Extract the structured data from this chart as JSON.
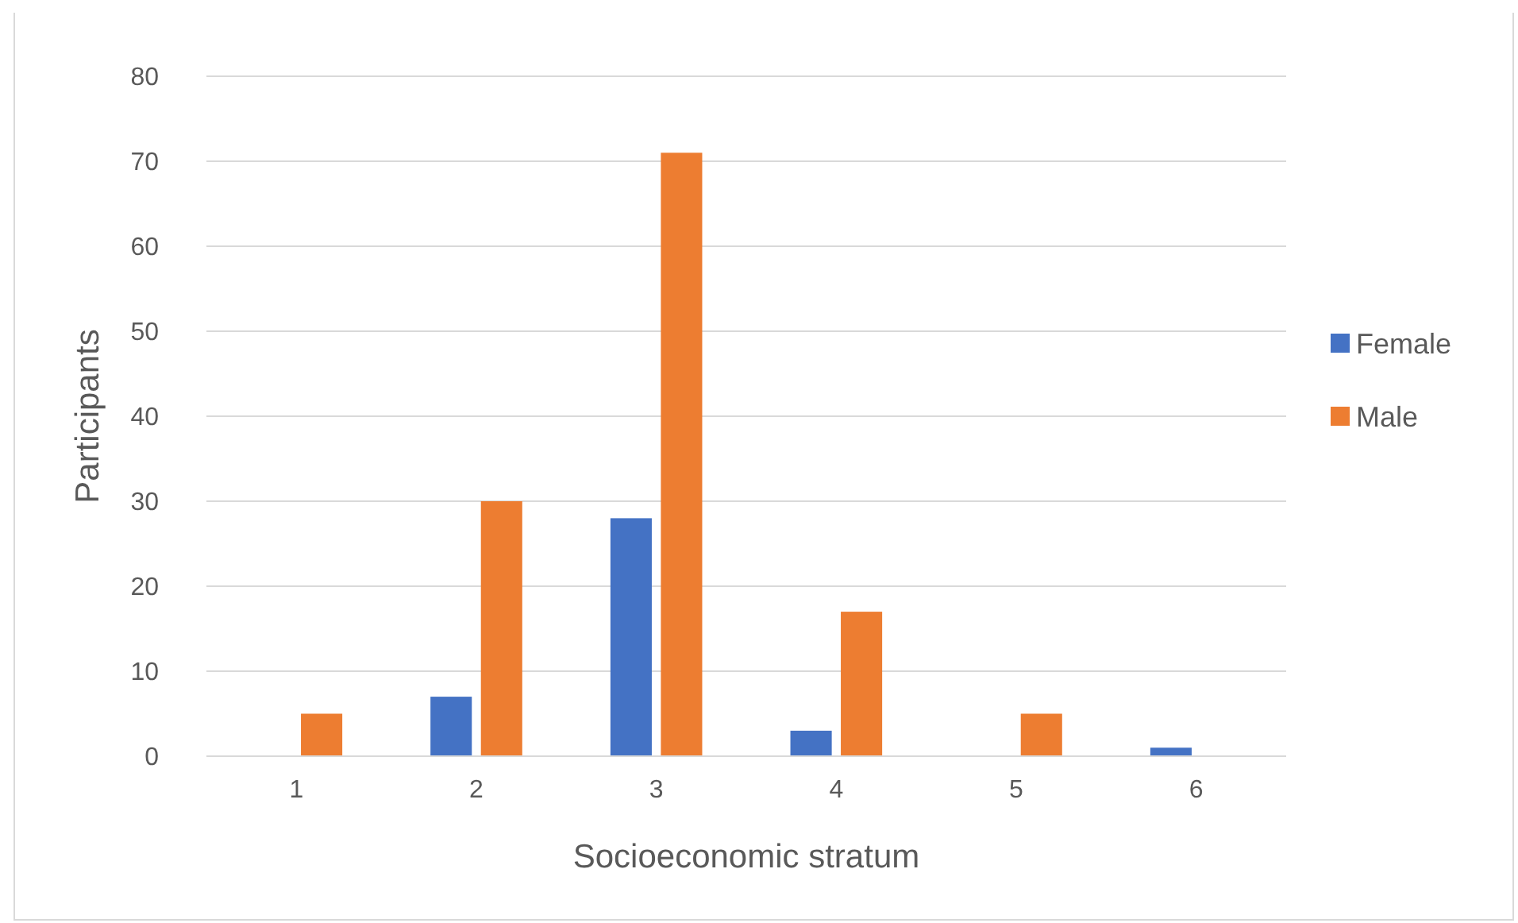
{
  "chart_data": {
    "type": "bar",
    "xlabel": "Socioeconomic stratum",
    "ylabel": "Participants",
    "categories": [
      "1",
      "2",
      "3",
      "4",
      "5",
      "6"
    ],
    "series": [
      {
        "name": "Female",
        "color": "#4472c4",
        "values": [
          0,
          7,
          28,
          3,
          0,
          1
        ]
      },
      {
        "name": "Male",
        "color": "#ed7d31",
        "values": [
          5,
          30,
          71,
          17,
          5,
          0
        ]
      }
    ],
    "ylim": [
      0,
      80
    ],
    "yticks": [
      0,
      10,
      20,
      30,
      40,
      50,
      60,
      70,
      80
    ],
    "grid": "y",
    "legend": "right"
  }
}
